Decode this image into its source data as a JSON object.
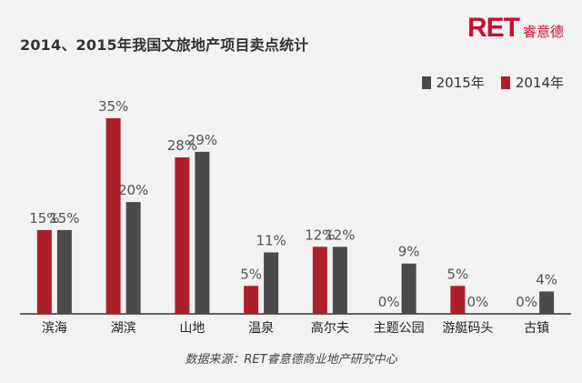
{
  "chart_data": {
    "type": "bar",
    "title": "2014、2015年我国文旅地产项目卖点统计",
    "categories": [
      "滨海",
      "湖滨",
      "山地",
      "温泉",
      "高尔夫",
      "主题公园",
      "游艇码头",
      "古镇"
    ],
    "series": [
      {
        "name": "2014年",
        "values": [
          15,
          35,
          28,
          5,
          12,
          0,
          5,
          0
        ],
        "color": "#ad1f2b"
      },
      {
        "name": "2015年",
        "values": [
          15,
          20,
          29,
          11,
          12,
          9,
          0,
          4
        ],
        "color": "#4a4a4a"
      }
    ],
    "legend_order": [
      1,
      0
    ],
    "legend_position": "top-right",
    "value_suffix": "%",
    "ylim": [
      0,
      35
    ],
    "grid": false
  },
  "logo": {
    "mark": "RET",
    "text": "睿意德"
  },
  "source": "数据来源：RET睿意德商业地产研究中心"
}
